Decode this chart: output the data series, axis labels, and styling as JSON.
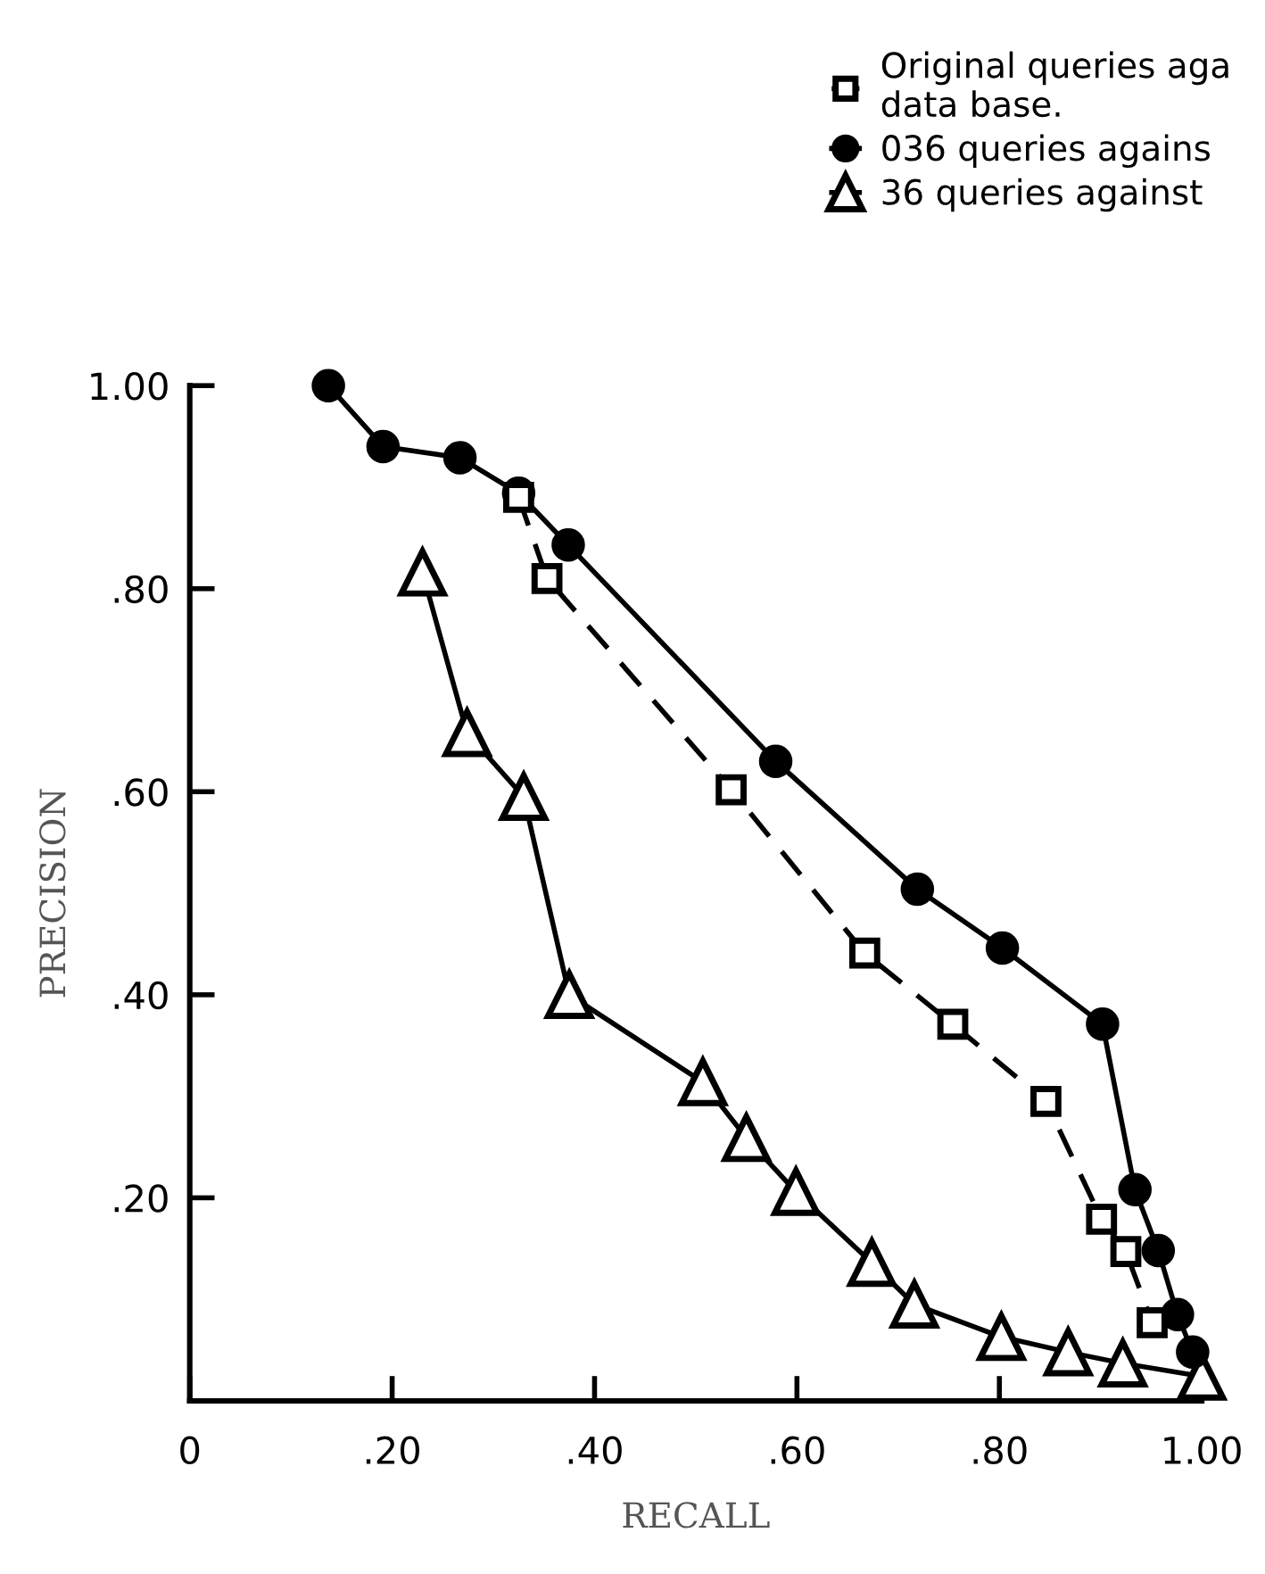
{
  "chart_data": {
    "type": "line",
    "xlabel": "RECALL",
    "ylabel": "PRECISION",
    "xlim": [
      0,
      1.0
    ],
    "ylim": [
      0,
      1.0
    ],
    "xticks": [
      0,
      {
        "value": 0.2,
        "label": ".20"
      },
      {
        "value": 0.4,
        "label": ".40"
      },
      {
        "value": 0.6,
        "label": ".60"
      },
      {
        "value": 0.8,
        "label": ".80"
      },
      {
        "value": 1.0,
        "label": "1.00"
      }
    ],
    "yticks": [
      {
        "value": 0.2,
        "label": ".20"
      },
      {
        "value": 0.4,
        "label": ".40"
      },
      {
        "value": 0.6,
        "label": ".60"
      },
      {
        "value": 0.8,
        "label": ".80"
      },
      {
        "value": 1.0,
        "label": "1.00"
      }
    ],
    "grid": false,
    "legend": "top right",
    "series": [
      {
        "name": "Original queries aga\ndata base.",
        "color": "#000000",
        "marker": "square",
        "line_style": "dashed",
        "x": [
          0.325,
          0.353,
          0.535,
          0.667,
          0.754,
          0.846,
          0.901,
          0.925,
          0.951
        ],
        "values": [
          0.89,
          0.81,
          0.602,
          0.441,
          0.371,
          0.295,
          0.179,
          0.147,
          0.077
        ]
      },
      {
        "name": "036 queries agains",
        "color": "#000000",
        "marker": "circle",
        "line_style": "solid",
        "x": [
          0.137,
          0.191,
          0.267,
          0.325,
          0.374,
          0.579,
          0.719,
          0.803,
          0.902,
          0.934,
          0.957,
          0.976,
          0.991
        ],
        "values": [
          1.0,
          0.94,
          0.929,
          0.894,
          0.843,
          0.63,
          0.504,
          0.446,
          0.371,
          0.208,
          0.148,
          0.085,
          0.048
        ]
      },
      {
        "name": "36 queries against",
        "color": "#000000",
        "marker": "triangle",
        "line_style": "solid",
        "x": [
          0.23,
          0.274,
          0.33,
          0.375,
          0.507,
          0.55,
          0.599,
          0.674,
          0.716,
          0.802,
          0.868,
          0.922,
          1.0
        ],
        "values": [
          0.816,
          0.658,
          0.595,
          0.4,
          0.314,
          0.259,
          0.206,
          0.136,
          0.095,
          0.063,
          0.048,
          0.037,
          0.024
        ]
      }
    ]
  }
}
